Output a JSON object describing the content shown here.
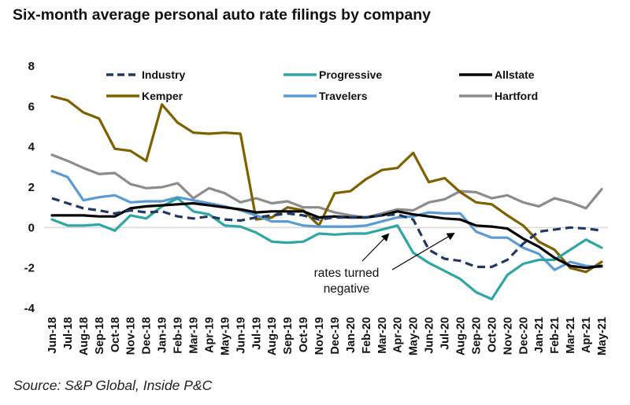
{
  "chart_data": {
    "type": "line",
    "title": "Six-month average personal auto rate filings by company",
    "source": "Source: S&P Global, Inside P&C",
    "xlabel": "",
    "ylabel": "",
    "ylim": [
      -4,
      8
    ],
    "yticks": [
      "8",
      "6",
      "4",
      "2",
      "0",
      "-2",
      "-4"
    ],
    "ytick_values": [
      8,
      6,
      4,
      2,
      0,
      -2,
      -4
    ],
    "grid": false,
    "zero_line": true,
    "legend_position": "top",
    "x": [
      "Jun-18",
      "Jul-18",
      "Aug-18",
      "Sep-18",
      "Oct-18",
      "Nov-18",
      "Dec-18",
      "Jan-19",
      "Feb-19",
      "Mar-19",
      "Apr-19",
      "May-19",
      "Jun-19",
      "Jul-19",
      "Aug-19",
      "Sep-19",
      "Oct-19",
      "Nov-19",
      "Dec-19",
      "Jan-20",
      "Feb-20",
      "Mar-20",
      "Apr-20",
      "May-20",
      "Jun-20",
      "Jul-20",
      "Aug-20",
      "Sep-20",
      "Oct-20",
      "Nov-20",
      "Dec-20",
      "Jan-21",
      "Feb-21",
      "Mar-21",
      "Apr-21",
      "May-21"
    ],
    "series": [
      {
        "name": "Industry",
        "color": "#1f3864",
        "dashed": true,
        "values": [
          1.45,
          1.2,
          0.95,
          0.85,
          0.7,
          0.85,
          0.75,
          0.8,
          0.55,
          0.45,
          0.55,
          0.4,
          0.35,
          0.5,
          0.6,
          0.7,
          0.6,
          0.4,
          0.5,
          0.5,
          0.5,
          0.6,
          0.65,
          0.4,
          -1.1,
          -1.55,
          -1.65,
          -1.95,
          -1.95,
          -1.6,
          -0.8,
          -0.2,
          -0.1,
          0.0,
          -0.05,
          -0.15
        ]
      },
      {
        "name": "Progressive",
        "color": "#2ea6a3",
        "dashed": false,
        "values": [
          0.4,
          0.1,
          0.1,
          0.15,
          -0.15,
          0.6,
          0.45,
          1.05,
          1.45,
          0.8,
          0.65,
          0.1,
          0.05,
          -0.25,
          -0.7,
          -0.75,
          -0.7,
          -0.3,
          -0.35,
          -0.3,
          -0.3,
          -0.1,
          0.1,
          -1.25,
          -1.75,
          -2.15,
          -2.55,
          -3.2,
          -3.55,
          -2.35,
          -1.8,
          -1.6,
          -1.6,
          -1.1,
          -0.6,
          -1.0
        ]
      },
      {
        "name": "Allstate",
        "color": "#000000",
        "dashed": false,
        "values": [
          0.6,
          0.6,
          0.6,
          0.55,
          0.55,
          0.95,
          1.05,
          1.1,
          1.15,
          1.2,
          1.1,
          1.0,
          0.9,
          0.75,
          0.8,
          0.8,
          0.8,
          0.5,
          0.55,
          0.5,
          0.5,
          0.6,
          0.8,
          0.65,
          0.55,
          0.45,
          0.4,
          0.1,
          0.05,
          -0.05,
          -0.55,
          -0.95,
          -1.5,
          -1.9,
          -2.0,
          -1.9
        ]
      },
      {
        "name": "Kemper",
        "color": "#7f6000",
        "dashed": false,
        "values": [
          6.5,
          6.3,
          5.7,
          5.4,
          3.9,
          3.8,
          3.3,
          6.1,
          5.2,
          4.7,
          4.65,
          4.7,
          4.65,
          0.4,
          0.5,
          1.0,
          0.85,
          0.1,
          1.7,
          1.8,
          2.4,
          2.85,
          2.95,
          3.7,
          2.25,
          2.45,
          1.75,
          1.25,
          1.15,
          0.6,
          0.1,
          -0.7,
          -1.1,
          -2.0,
          -2.2,
          -1.7
        ]
      },
      {
        "name": "Travelers",
        "color": "#5b9bd5",
        "dashed": false,
        "values": [
          2.8,
          2.5,
          1.35,
          1.5,
          1.6,
          1.25,
          1.3,
          1.3,
          1.5,
          1.35,
          1.2,
          1.05,
          0.85,
          0.6,
          0.3,
          0.3,
          0.1,
          0.05,
          0.05,
          0.05,
          0.1,
          0.3,
          0.5,
          0.55,
          0.75,
          0.7,
          0.7,
          -0.2,
          -0.5,
          -0.5,
          -1.0,
          -1.3,
          -2.1,
          -1.7,
          -1.9,
          -1.95
        ]
      },
      {
        "name": "Hartford",
        "color": "#8c8c8c",
        "dashed": false,
        "values": [
          3.6,
          3.3,
          2.95,
          2.65,
          2.7,
          2.15,
          1.95,
          2.0,
          2.2,
          1.45,
          1.95,
          1.7,
          1.25,
          1.45,
          1.2,
          1.3,
          1.0,
          1.0,
          0.75,
          0.6,
          0.5,
          0.7,
          0.9,
          0.85,
          1.25,
          1.4,
          1.8,
          1.75,
          1.45,
          1.6,
          1.25,
          1.05,
          1.45,
          1.25,
          0.95,
          1.9
        ]
      }
    ],
    "annotations": [
      {
        "text_lines": [
          "rates turned",
          "negative"
        ],
        "arrows_to": [
          {
            "series": "Progressive",
            "x": "Apr-20"
          },
          {
            "series": "Travelers",
            "x": "Aug-20"
          }
        ]
      }
    ]
  }
}
